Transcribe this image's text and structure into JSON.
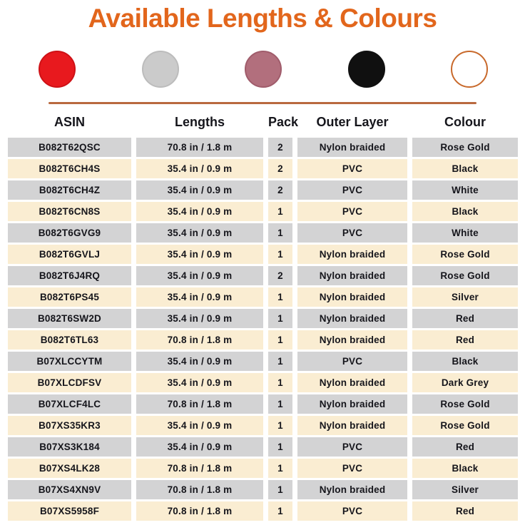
{
  "title": "Available Lengths & Colours",
  "swatches": [
    {
      "name": "red",
      "fill": "#E8191E",
      "border": "#CE1116"
    },
    {
      "name": "silver",
      "fill": "#CBCBCB",
      "border": "#BCBCBC"
    },
    {
      "name": "rose-gold",
      "fill": "#B26F7D",
      "border": "#A05C6B"
    },
    {
      "name": "black",
      "fill": "#101010",
      "border": "#101010"
    },
    {
      "name": "white",
      "fill": "#FFFFFF",
      "border": "#C8692B"
    }
  ],
  "colors": {
    "title": "#E2661C",
    "divider": "#B9693F",
    "row_gray": "#D3D3D4",
    "row_cream": "#FAEDD2",
    "text": "#15151B"
  },
  "chart_data": {
    "type": "table",
    "title": "Available Lengths & Colours",
    "columns": [
      "ASIN",
      "Lengths",
      "Pack",
      "Outer Layer",
      "Colour"
    ],
    "rows": [
      [
        "B082T62QSC",
        "70.8 in / 1.8 m",
        "2",
        "Nylon braided",
        "Rose Gold"
      ],
      [
        "B082T6CH4S",
        "35.4 in / 0.9 m",
        "2",
        "PVC",
        "Black"
      ],
      [
        "B082T6CH4Z",
        "35.4 in / 0.9 m",
        "2",
        "PVC",
        "White"
      ],
      [
        "B082T6CN8S",
        "35.4 in / 0.9 m",
        "1",
        "PVC",
        "Black"
      ],
      [
        "B082T6GVG9",
        "35.4 in / 0.9 m",
        "1",
        "PVC",
        "White"
      ],
      [
        "B082T6GVLJ",
        "35.4 in / 0.9 m",
        "1",
        "Nylon braided",
        "Rose Gold"
      ],
      [
        "B082T6J4RQ",
        "35.4 in / 0.9 m",
        "2",
        "Nylon braided",
        "Rose Gold"
      ],
      [
        "B082T6PS45",
        "35.4 in / 0.9 m",
        "1",
        "Nylon braided",
        "Silver"
      ],
      [
        "B082T6SW2D",
        "35.4 in / 0.9 m",
        "1",
        "Nylon braided",
        "Red"
      ],
      [
        "B082T6TL63",
        "70.8 in / 1.8 m",
        "1",
        "Nylon braided",
        "Red"
      ],
      [
        "B07XLCCYTM",
        "35.4 in / 0.9 m",
        "1",
        "PVC",
        "Black"
      ],
      [
        "B07XLCDFSV",
        "35.4 in / 0.9 m",
        "1",
        "Nylon braided",
        "Dark Grey"
      ],
      [
        "B07XLCF4LC",
        "70.8 in / 1.8 m",
        "1",
        "Nylon braided",
        "Rose Gold"
      ],
      [
        "B07XS35KR3",
        "35.4 in / 0.9 m",
        "1",
        "Nylon braided",
        "Rose Gold"
      ],
      [
        "B07XS3K184",
        "35.4 in / 0.9 m",
        "1",
        "PVC",
        "Red"
      ],
      [
        "B07XS4LK28",
        "70.8 in / 1.8 m",
        "1",
        "PVC",
        "Black"
      ],
      [
        "B07XS4XN9V",
        "70.8 in / 1.8 m",
        "1",
        "Nylon braided",
        "Silver"
      ],
      [
        "B07XS5958F",
        "70.8 in / 1.8 m",
        "1",
        "PVC",
        "Red"
      ]
    ]
  }
}
